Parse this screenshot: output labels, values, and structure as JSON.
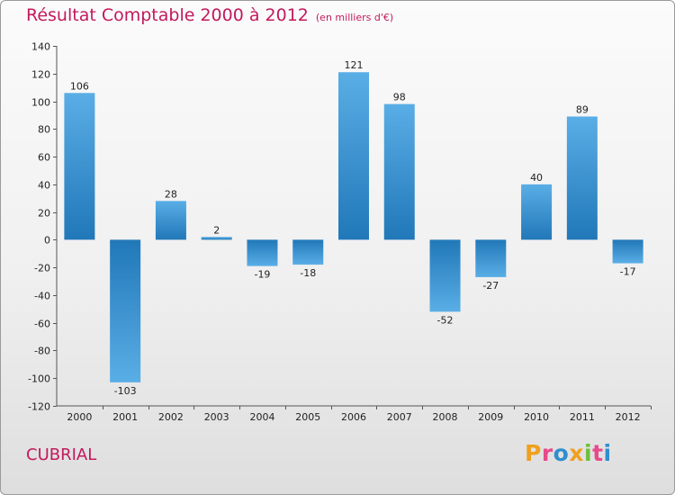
{
  "header": {
    "title": "Résultat Comptable 2000 à 2012",
    "subtitle": "(en milliers d'€)"
  },
  "footer": {
    "commune": "CUBRIAL",
    "brand": [
      "P",
      "r",
      "o",
      "x",
      "i",
      "t",
      "i"
    ]
  },
  "colors": {
    "accent": "#c21a5c",
    "bar_light": "#5aaee6",
    "bar_dark": "#2178b8",
    "brand": [
      "#f0a020",
      "#e84a8a",
      "#2f8ecf",
      "#f0a020",
      "#6cbf3c",
      "#e84a8a",
      "#2f8ecf"
    ]
  },
  "chart_data": {
    "type": "bar",
    "title": "Résultat Comptable 2000 à 2012",
    "subtitle": "(en milliers d'€)",
    "categories": [
      "2000",
      "2001",
      "2002",
      "2003",
      "2004",
      "2005",
      "2006",
      "2007",
      "2008",
      "2009",
      "2010",
      "2011",
      "2012"
    ],
    "values": [
      106,
      -103,
      28,
      2,
      -19,
      -18,
      121,
      98,
      -52,
      -27,
      40,
      89,
      -17
    ],
    "value_labels": [
      "106",
      "-103",
      "28",
      "2",
      "-19",
      "-18",
      "121",
      "98",
      "-52",
      "-27",
      "40",
      "89",
      "-17"
    ],
    "yticks": [
      140,
      120,
      100,
      80,
      60,
      40,
      20,
      0,
      -20,
      -40,
      -60,
      -80,
      -100,
      -120
    ],
    "ytick_labels": [
      "140",
      "120",
      "100",
      "80",
      "60",
      "40",
      "20",
      "0",
      "-20",
      "-40",
      "-60",
      "-80",
      "-100",
      "-120"
    ],
    "ylim": [
      -120,
      140
    ],
    "xlabel": "",
    "ylabel": "",
    "grid": false,
    "legend": "none"
  }
}
